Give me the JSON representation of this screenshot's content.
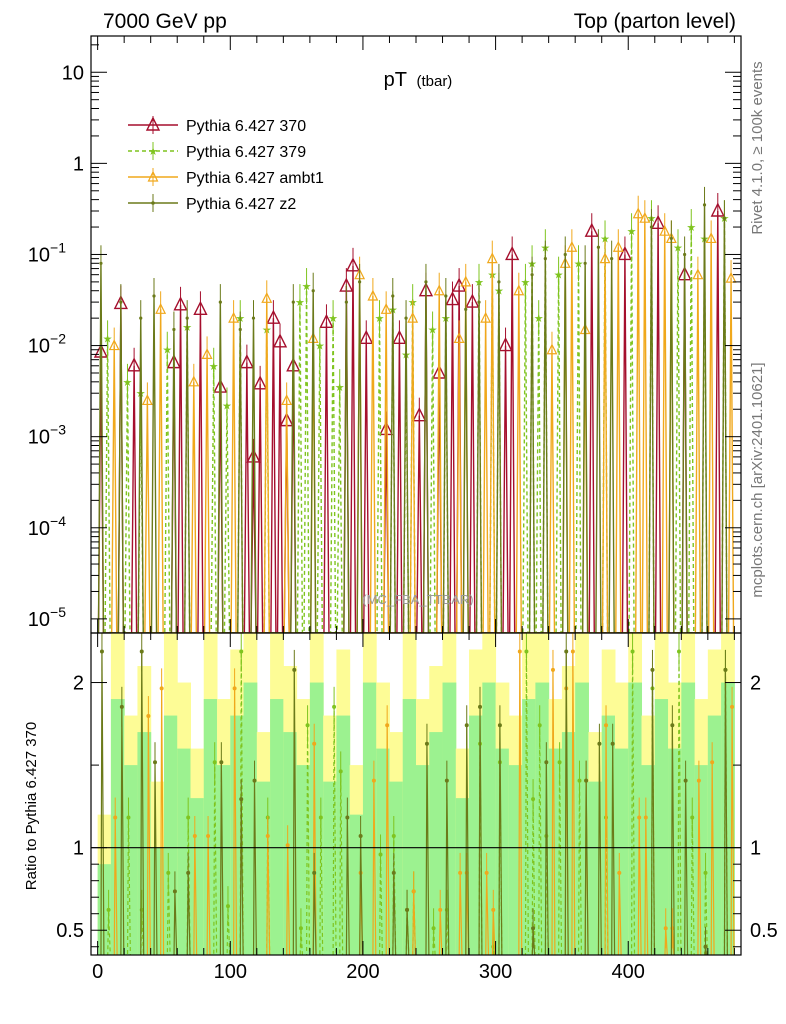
{
  "header": {
    "left": "7000 GeV pp",
    "right": "Top (parton level)"
  },
  "chart_data": {
    "type": "line",
    "title_main": "pT",
    "title_sub": "(tbar)",
    "watermark": "(MC_FBA_TTBAR)",
    "side_label_top": "Rivet 4.1.0, ≥ 100k events",
    "side_label_bottom": "mcplots.cern.ch [arXiv:2401.10621]",
    "upper": {
      "yscale": "log",
      "ylim": [
        7e-06,
        25
      ],
      "yticks": [
        {
          "v": 10,
          "b": "10",
          "e": ""
        },
        {
          "v": 1,
          "b": "1",
          "e": ""
        },
        {
          "v": 0.1,
          "b": "10",
          "e": "−1"
        },
        {
          "v": 0.01,
          "b": "10",
          "e": "−2"
        },
        {
          "v": 0.001,
          "b": "10",
          "e": "−3"
        },
        {
          "v": 0.0001,
          "b": "10",
          "e": "−4"
        },
        {
          "v": 1e-05,
          "b": "10",
          "e": "−5"
        }
      ]
    },
    "lower": {
      "ylabel": "Ratio to Pythia 6.427 370",
      "ylim": [
        0.35,
        2.3
      ],
      "yticks": [
        {
          "v": 0.5,
          "label": "0.5"
        },
        {
          "v": 1,
          "label": "1"
        },
        {
          "v": 2,
          "label": "2"
        }
      ]
    },
    "xlim": [
      -5,
      485
    ],
    "xticks": [
      0,
      100,
      200,
      300,
      400
    ],
    "legend": [
      {
        "label": "Pythia 6.427 370",
        "color": "#a50f2d",
        "marker": "triangle-open",
        "dash": false
      },
      {
        "label": "Pythia 6.427 379",
        "color": "#7fc41f",
        "marker": "star",
        "dash": true
      },
      {
        "label": "Pythia 6.427 ambt1",
        "color": "#f0a81c",
        "marker": "triangle-open-small",
        "dash": false
      },
      {
        "label": "Pythia 6.427 z2",
        "color": "#6b7a1a",
        "marker": "dot",
        "dash": false
      }
    ],
    "series": [
      {
        "name": "Pythia 6.427 370",
        "points": [
          [
            2.5,
            0.0085
          ],
          [
            17.5,
            0.029
          ],
          [
            27.5,
            0.006
          ],
          [
            57.5,
            0.0065
          ],
          [
            62.5,
            0.028
          ],
          [
            77.5,
            0.025
          ],
          [
            92.5,
            0.0035
          ],
          [
            112.5,
            0.0065
          ],
          [
            117.5,
            0.0006
          ],
          [
            122.5,
            0.0038
          ],
          [
            132.5,
            0.02
          ],
          [
            137.5,
            0.011
          ],
          [
            142.5,
            0.0015
          ],
          [
            147.5,
            0.006
          ],
          [
            172.5,
            0.018
          ],
          [
            187.5,
            0.045
          ],
          [
            192.5,
            0.075
          ],
          [
            202.5,
            0.012
          ],
          [
            217.5,
            0.0012
          ],
          [
            227.5,
            0.012
          ],
          [
            242.5,
            0.0017
          ],
          [
            247.5,
            0.04
          ],
          [
            257.5,
            0.005
          ],
          [
            267.5,
            0.032
          ],
          [
            272.5,
            0.045
          ],
          [
            282.5,
            0.03
          ],
          [
            307.5,
            0.01
          ],
          [
            312.5,
            0.1
          ],
          [
            372.5,
            0.18
          ],
          [
            397.5,
            0.1
          ],
          [
            422.5,
            0.22
          ],
          [
            442.5,
            0.06
          ],
          [
            467.5,
            0.3
          ]
        ]
      },
      {
        "name": "Pythia 6.427 379",
        "points": [
          [
            7.5,
            0.012
          ],
          [
            22.5,
            0.004
          ],
          [
            32.5,
            0.003
          ],
          [
            52.5,
            0.009
          ],
          [
            67.5,
            0.016
          ],
          [
            87.5,
            0.006
          ],
          [
            97.5,
            0.0022
          ],
          [
            107.5,
            0.02
          ],
          [
            127.5,
            0.015
          ],
          [
            152.5,
            0.03
          ],
          [
            157.5,
            0.045
          ],
          [
            167.5,
            0.01
          ],
          [
            177.5,
            0.02
          ],
          [
            182.5,
            0.0035
          ],
          [
            212.5,
            0.02
          ],
          [
            222.5,
            0.025
          ],
          [
            232.5,
            0.008
          ],
          [
            237.5,
            0.03
          ],
          [
            252.5,
            0.015
          ],
          [
            262.5,
            0.02
          ],
          [
            287.5,
            0.05
          ],
          [
            297.5,
            0.06
          ],
          [
            302.5,
            0.04
          ],
          [
            322.5,
            0.05
          ],
          [
            327.5,
            0.08
          ],
          [
            332.5,
            0.02
          ],
          [
            337.5,
            0.12
          ],
          [
            347.5,
            0.06
          ],
          [
            362.5,
            0.08
          ],
          [
            382.5,
            0.15
          ],
          [
            402.5,
            0.18
          ],
          [
            417.5,
            0.25
          ],
          [
            437.5,
            0.12
          ],
          [
            447.5,
            0.2
          ],
          [
            457.5,
            0.15
          ],
          [
            472.5,
            0.25
          ]
        ]
      },
      {
        "name": "Pythia 6.427 ambt1",
        "points": [
          [
            12.5,
            0.01
          ],
          [
            37.5,
            0.0025
          ],
          [
            47.5,
            0.025
          ],
          [
            72.5,
            0.004
          ],
          [
            82.5,
            0.008
          ],
          [
            102.5,
            0.02
          ],
          [
            127.5,
            0.033
          ],
          [
            142.5,
            0.0025
          ],
          [
            162.5,
            0.012
          ],
          [
            197.5,
            0.06
          ],
          [
            207.5,
            0.035
          ],
          [
            217.5,
            0.025
          ],
          [
            237.5,
            0.02
          ],
          [
            257.5,
            0.04
          ],
          [
            272.5,
            0.012
          ],
          [
            277.5,
            0.05
          ],
          [
            292.5,
            0.02
          ],
          [
            297.5,
            0.09
          ],
          [
            317.5,
            0.04
          ],
          [
            342.5,
            0.009
          ],
          [
            352.5,
            0.08
          ],
          [
            357.5,
            0.12
          ],
          [
            367.5,
            0.015
          ],
          [
            382.5,
            0.09
          ],
          [
            392.5,
            0.12
          ],
          [
            407.5,
            0.28
          ],
          [
            412.5,
            0.25
          ],
          [
            427.5,
            0.18
          ],
          [
            432.5,
            0.15
          ],
          [
            452.5,
            0.06
          ],
          [
            462.5,
            0.15
          ],
          [
            477.5,
            0.055
          ]
        ]
      },
      {
        "name": "Pythia 6.427 z2",
        "points": [
          [
            2.5,
            0.08
          ],
          [
            17.5,
            0.03
          ],
          [
            32.5,
            0.02
          ],
          [
            42.5,
            0.035
          ],
          [
            57.5,
            0.015
          ],
          [
            67.5,
            0.02
          ],
          [
            92.5,
            0.03
          ],
          [
            107.5,
            0.015
          ],
          [
            117.5,
            0.02
          ],
          [
            147.5,
            0.03
          ],
          [
            162.5,
            0.04
          ],
          [
            187.5,
            0.03
          ],
          [
            197.5,
            0.05
          ],
          [
            222.5,
            0.035
          ],
          [
            232.5,
            0.02
          ],
          [
            247.5,
            0.05
          ],
          [
            262.5,
            0.035
          ],
          [
            277.5,
            0.025
          ],
          [
            287.5,
            0.03
          ],
          [
            302.5,
            0.05
          ],
          [
            327.5,
            0.06
          ],
          [
            337.5,
            0.09
          ],
          [
            352.5,
            0.1
          ],
          [
            367.5,
            0.08
          ],
          [
            377.5,
            0.12
          ],
          [
            387.5,
            0.09
          ],
          [
            417.5,
            0.2
          ],
          [
            432.5,
            0.15
          ],
          [
            442.5,
            0.1
          ],
          [
            457.5,
            0.35
          ],
          [
            472.5,
            0.25
          ]
        ]
      }
    ],
    "ratio_band": {
      "yellow": [
        1.2,
        2.4,
        1.8,
        2.1,
        1.4,
        2.3,
        2.0,
        1.6,
        2.4,
        1.9,
        2.2,
        2.4,
        1.7,
        2.3,
        2.1,
        1.9,
        2.4,
        1.8,
        2.2,
        1.5,
        2.4,
        2.0,
        1.7,
        2.3,
        1.9,
        2.1,
        2.4,
        1.6,
        2.2,
        2.4,
        2.0,
        1.8,
        2.3,
        2.4,
        1.9,
        2.1,
        2.4,
        1.7,
        2.2,
        2.0,
        2.4,
        1.8,
        2.3,
        2.0,
        2.4,
        1.9,
        2.2,
        2.4
      ],
      "green": [
        0.9,
        1.9,
        1.5,
        1.7,
        1.0,
        1.8,
        1.6,
        1.3,
        1.9,
        1.5,
        1.8,
        2.0,
        1.4,
        1.9,
        1.7,
        1.5,
        2.0,
        1.4,
        1.8,
        1.2,
        2.0,
        1.6,
        1.4,
        1.9,
        1.5,
        1.7,
        2.0,
        1.3,
        1.8,
        2.0,
        1.6,
        1.5,
        1.9,
        2.0,
        1.6,
        1.7,
        2.0,
        1.4,
        1.8,
        1.6,
        2.0,
        1.5,
        1.9,
        1.6,
        2.0,
        1.5,
        1.8,
        2.0
      ]
    }
  }
}
